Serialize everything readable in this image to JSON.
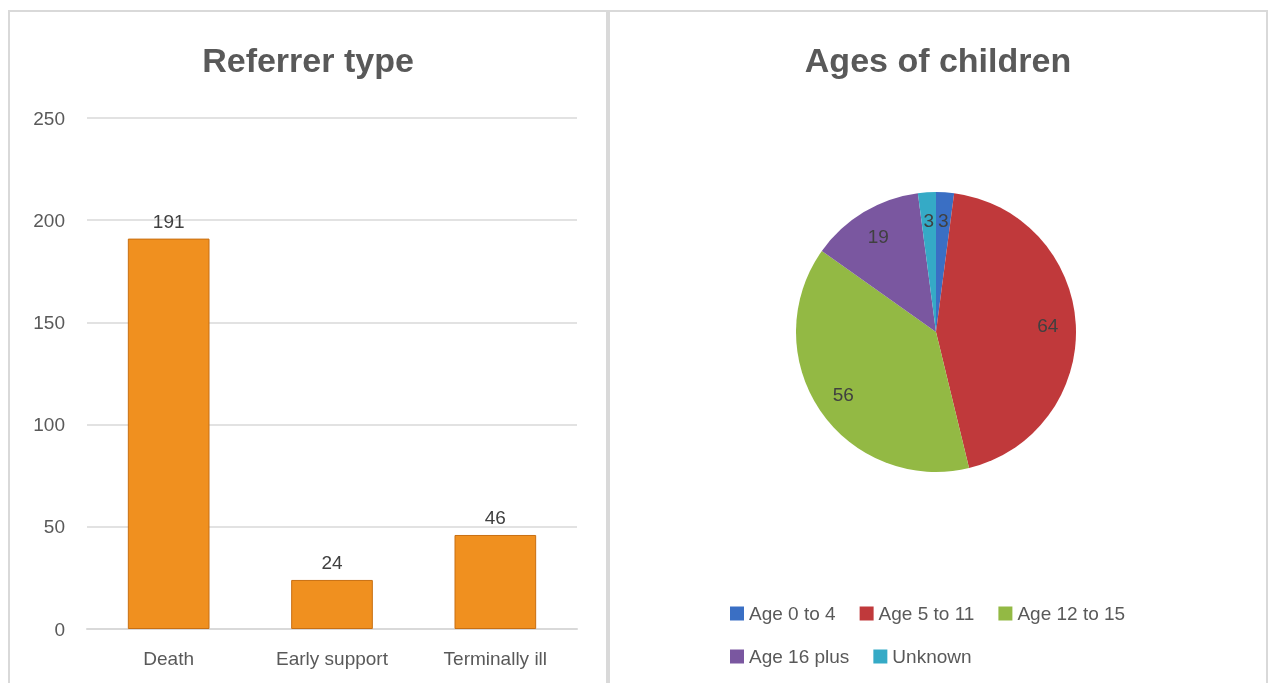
{
  "chart_data": [
    {
      "type": "bar",
      "title": "Referrer type",
      "categories": [
        "Death",
        "Early support",
        "Terminally ill"
      ],
      "values": [
        191,
        24,
        46
      ],
      "color": "#f0901f",
      "ylim": [
        0,
        250
      ],
      "yticks": [
        0,
        50,
        100,
        150,
        200,
        250
      ],
      "grid": "y",
      "data_labels": true
    },
    {
      "type": "pie",
      "title": "Ages of children",
      "categories": [
        "Age 0 to 4",
        "Age 5 to 11",
        "Age 12 to 15",
        "Age 16 plus",
        "Unknown"
      ],
      "values": [
        3,
        64,
        56,
        19,
        3
      ],
      "colors": [
        "#3a6fc4",
        "#c0393b",
        "#93b944",
        "#7a57a0",
        "#35aac6"
      ],
      "data_labels": true,
      "legend": "bottom"
    }
  ]
}
